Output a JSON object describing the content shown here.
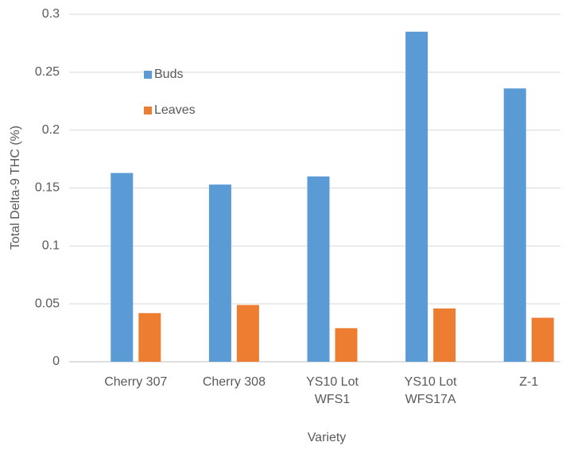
{
  "chart_data": {
    "type": "bar",
    "y_label": "Total Delta-9 THC (%)",
    "x_label": "Variety",
    "categories": [
      "Cherry 307",
      "Cherry 308",
      "YS10 Lot WFS1",
      "YS10 Lot WFS17A",
      "Z-1"
    ],
    "series": [
      {
        "name": "Buds",
        "color": "#5b9bd5",
        "values": [
          0.163,
          0.153,
          0.16,
          0.285,
          0.236
        ]
      },
      {
        "name": "Leaves",
        "color": "#ed7d31",
        "values": [
          0.042,
          0.049,
          0.029,
          0.046,
          0.038
        ]
      }
    ],
    "ylim": [
      0,
      0.3
    ],
    "yticks": [
      0,
      0.05,
      0.1,
      0.15,
      0.2,
      0.25,
      0.3
    ],
    "grid": true,
    "legend": "upper left"
  }
}
